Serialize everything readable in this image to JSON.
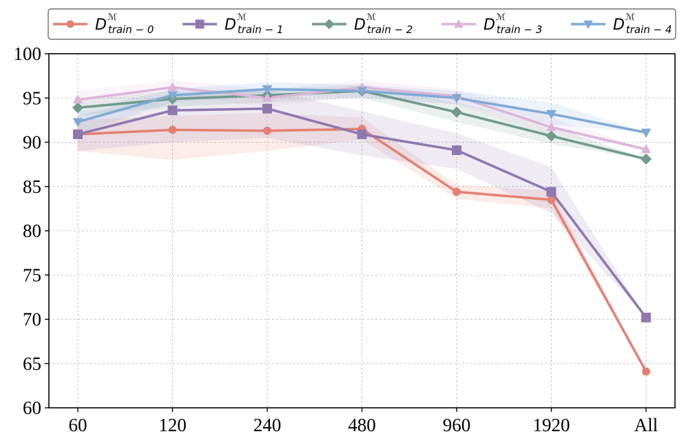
{
  "chart_data": {
    "type": "line",
    "title": "",
    "xlabel": "",
    "ylabel": "",
    "categories": [
      "60",
      "120",
      "240",
      "480",
      "960",
      "1920",
      "All"
    ],
    "ylim": [
      60,
      100
    ],
    "yticks": [
      60,
      65,
      70,
      75,
      80,
      85,
      90,
      95,
      100
    ],
    "grid": true,
    "legend_position": "top",
    "series": [
      {
        "name": "D^M_train-0",
        "legend": {
          "main": "D",
          "sup": "ℳ",
          "sub": "train − 0"
        },
        "color": "#e48073",
        "marker": "circle",
        "values": [
          90.9,
          91.4,
          91.3,
          91.5,
          84.4,
          83.5,
          64.1
        ],
        "band_low": [
          89.0,
          88.0,
          89.0,
          90.3,
          83.6,
          82.5,
          64.1
        ],
        "band_high": [
          92.5,
          93.0,
          93.3,
          92.8,
          85.2,
          84.5,
          64.1
        ]
      },
      {
        "name": "D^M_train-1",
        "legend": {
          "main": "D",
          "sup": "ℳ",
          "sub": "train − 1"
        },
        "color": "#8e78b0",
        "marker": "square",
        "values": [
          90.9,
          93.6,
          93.8,
          90.9,
          89.1,
          84.4,
          70.2
        ],
        "band_low": [
          89.0,
          90.0,
          90.5,
          88.5,
          87.0,
          82.0,
          70.2
        ],
        "band_high": [
          93.0,
          95.5,
          96.0,
          93.5,
          91.0,
          87.2,
          70.2
        ]
      },
      {
        "name": "D^M_train-2",
        "legend": {
          "main": "D",
          "sup": "ℳ",
          "sub": "train − 2"
        },
        "color": "#6f9a8c",
        "marker": "diamond",
        "values": [
          93.9,
          94.9,
          95.3,
          95.8,
          93.4,
          90.7,
          88.1
        ],
        "band_low": [
          93.0,
          94.0,
          94.5,
          95.0,
          92.3,
          89.8,
          88.1
        ],
        "band_high": [
          95.0,
          95.8,
          96.0,
          96.5,
          94.5,
          91.8,
          88.1
        ]
      },
      {
        "name": "D^M_train-3",
        "legend": {
          "main": "D",
          "sup": "ℳ",
          "sub": "train − 3"
        },
        "color": "#dbb5d8",
        "marker": "triangle-up",
        "values": [
          94.8,
          96.2,
          95.0,
          96.2,
          95.2,
          91.7,
          89.2
        ],
        "band_low": [
          93.8,
          95.2,
          94.0,
          95.2,
          94.2,
          90.8,
          89.2
        ],
        "band_high": [
          95.8,
          97.0,
          96.0,
          97.0,
          96.0,
          92.8,
          89.2
        ]
      },
      {
        "name": "D^M_train-4",
        "legend": {
          "main": "D",
          "sup": "ℳ",
          "sub": "train − 4"
        },
        "color": "#7eaad4",
        "marker": "triangle-down",
        "values": [
          92.3,
          95.3,
          96.0,
          95.8,
          95.0,
          93.2,
          91.1
        ],
        "band_low": [
          91.0,
          94.5,
          95.3,
          95.0,
          94.3,
          92.0,
          91.1
        ],
        "band_high": [
          93.5,
          96.0,
          96.8,
          96.5,
          95.8,
          94.5,
          91.1
        ]
      }
    ]
  }
}
